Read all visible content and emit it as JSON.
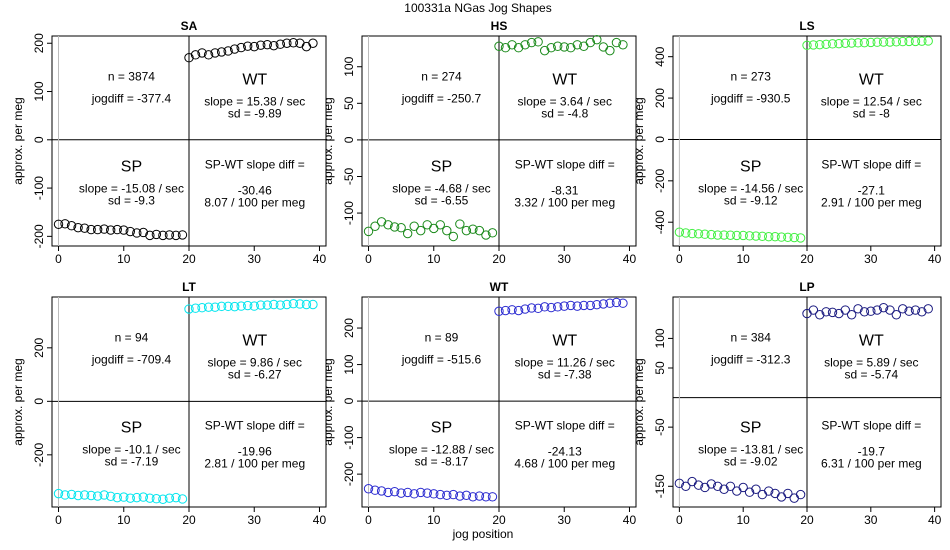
{
  "figure_title": "100331a    NGas Jog Shapes",
  "xlabel": "jog position",
  "chart_data": [
    {
      "type": "scatter",
      "title": "SA",
      "color": "#000000",
      "ylabel": "approx. per meg",
      "xlim": [
        -1,
        41
      ],
      "ylim": [
        -220,
        215
      ],
      "xticks": [
        0,
        10,
        20,
        30,
        40
      ],
      "yticks": [
        -200,
        -100,
        0,
        100,
        200
      ],
      "n_text": "n = 3874",
      "jogdiff_text": "jogdiff = -377.4",
      "wt_label": "WT",
      "wt_slope_text": "slope = 15.38 / sec",
      "wt_sd_text": "sd = -9.89",
      "sp_label": "SP",
      "sp_slope_text": "slope = -15.08 / sec",
      "sp_sd_text": "sd = -9.3",
      "diff_label": "SP-WT slope diff =",
      "diff_value": "-30.46",
      "diff_per_meg": "8.07 / 100 per meg",
      "series": [
        {
          "x": [
            0,
            1,
            2,
            3,
            4,
            5,
            6,
            7,
            8,
            9,
            10,
            11,
            12,
            13,
            14,
            15,
            16,
            17,
            18,
            19
          ],
          "y": [
            -175,
            -174,
            -178,
            -182,
            -183,
            -186,
            -186,
            -185,
            -187,
            -186,
            -187,
            -190,
            -193,
            -192,
            -198,
            -196,
            -198,
            -197,
            -198,
            -197
          ]
        },
        {
          "x": [
            20,
            21,
            22,
            23,
            24,
            25,
            26,
            27,
            28,
            29,
            30,
            31,
            32,
            33,
            34,
            35,
            36,
            37,
            38,
            39
          ],
          "y": [
            170,
            176,
            180,
            176,
            180,
            182,
            184,
            188,
            191,
            194,
            193,
            196,
            197,
            195,
            198,
            200,
            201,
            200,
            193,
            200
          ]
        }
      ]
    },
    {
      "type": "scatter",
      "title": "HS",
      "color": "#1b8a1b",
      "ylabel": "approx. per meg",
      "xlim": [
        -1,
        41
      ],
      "ylim": [
        -145,
        142
      ],
      "xticks": [
        0,
        10,
        20,
        30,
        40
      ],
      "yticks": [
        -100,
        -50,
        0,
        50,
        100
      ],
      "n_text": "n = 274",
      "jogdiff_text": "jogdiff = -250.7",
      "wt_label": "WT",
      "wt_slope_text": "slope = 3.64 / sec",
      "wt_sd_text": "sd = -4.8",
      "sp_label": "SP",
      "sp_slope_text": "slope = -4.68 / sec",
      "sp_sd_text": "sd = -6.55",
      "diff_label": "SP-WT slope diff =",
      "diff_value": "-8.31",
      "diff_per_meg": "3.32 / 100 per meg",
      "series": [
        {
          "x": [
            0,
            1,
            2,
            3,
            4,
            5,
            6,
            7,
            8,
            9,
            10,
            11,
            12,
            13,
            14,
            15,
            16,
            17,
            18,
            19
          ],
          "y": [
            -125,
            -118,
            -112,
            -116,
            -119,
            -120,
            -128,
            -118,
            -124,
            -116,
            -121,
            -116,
            -124,
            -132,
            -115,
            -124,
            -122,
            -124,
            -130,
            -127
          ]
        },
        {
          "x": [
            20,
            21,
            22,
            23,
            24,
            25,
            26,
            27,
            28,
            29,
            30,
            31,
            32,
            33,
            34,
            35,
            36,
            37,
            38,
            39
          ],
          "y": [
            128,
            126,
            130,
            126,
            130,
            133,
            134,
            122,
            126,
            128,
            127,
            126,
            130,
            128,
            133,
            137,
            127,
            122,
            133,
            130
          ]
        }
      ]
    },
    {
      "type": "scatter",
      "title": "LS",
      "color": "#40f040",
      "ylabel": "approx. per meg",
      "xlim": [
        -1,
        41
      ],
      "ylim": [
        -515,
        500
      ],
      "xticks": [
        0,
        10,
        20,
        30,
        40
      ],
      "yticks": [
        -400,
        -200,
        0,
        200,
        400
      ],
      "n_text": "n = 273",
      "jogdiff_text": "jogdiff = -930.5",
      "wt_label": "WT",
      "wt_slope_text": "slope = 12.54 / sec",
      "wt_sd_text": "sd = -8",
      "sp_label": "SP",
      "sp_slope_text": "slope = -14.56 / sec",
      "sp_sd_text": "sd = -9.12",
      "diff_label": "SP-WT slope diff =",
      "diff_value": "-27.1",
      "diff_per_meg": "2.91 / 100 per meg",
      "series": [
        {
          "x": [
            0,
            1,
            2,
            3,
            4,
            5,
            6,
            7,
            8,
            9,
            10,
            11,
            12,
            13,
            14,
            15,
            16,
            17,
            18,
            19
          ],
          "y": [
            -448,
            -452,
            -455,
            -456,
            -458,
            -460,
            -462,
            -462,
            -463,
            -464,
            -464,
            -466,
            -467,
            -468,
            -470,
            -470,
            -472,
            -473,
            -474,
            -476
          ]
        },
        {
          "x": [
            20,
            21,
            22,
            23,
            24,
            25,
            26,
            27,
            28,
            29,
            30,
            31,
            32,
            33,
            34,
            35,
            36,
            37,
            38,
            39
          ],
          "y": [
            455,
            457,
            458,
            460,
            462,
            463,
            465,
            466,
            467,
            468,
            469,
            470,
            471,
            471,
            472,
            473,
            474,
            474,
            475,
            476
          ]
        }
      ]
    },
    {
      "type": "scatter",
      "title": "LT",
      "color": "#00e5ee",
      "ylabel": "approx. per meg",
      "xlim": [
        -1,
        41
      ],
      "ylim": [
        -395,
        390
      ],
      "xticks": [
        0,
        10,
        20,
        30,
        40
      ],
      "yticks": [
        -200,
        0,
        200
      ],
      "n_text": "n = 94",
      "jogdiff_text": "jogdiff = -709.4",
      "wt_label": "WT",
      "wt_slope_text": "slope = 9.86 / sec",
      "wt_sd_text": "sd = -6.27",
      "sp_label": "SP",
      "sp_slope_text": "slope = -10.1 / sec",
      "sp_sd_text": "sd = -7.19",
      "diff_label": "SP-WT slope diff =",
      "diff_value": "-19.96",
      "diff_per_meg": "2.81 / 100 per meg",
      "series": [
        {
          "x": [
            0,
            1,
            2,
            3,
            4,
            5,
            6,
            7,
            8,
            9,
            10,
            11,
            12,
            13,
            14,
            15,
            16,
            17,
            18,
            19
          ],
          "y": [
            -345,
            -350,
            -348,
            -352,
            -350,
            -352,
            -354,
            -350,
            -355,
            -360,
            -358,
            -362,
            -360,
            -358,
            -362,
            -364,
            -366,
            -362,
            -360,
            -365
          ]
        },
        {
          "x": [
            20,
            21,
            22,
            23,
            24,
            25,
            26,
            27,
            28,
            29,
            30,
            31,
            32,
            33,
            34,
            35,
            36,
            37,
            38,
            39
          ],
          "y": [
            345,
            348,
            350,
            352,
            352,
            355,
            355,
            354,
            356,
            358,
            356,
            360,
            360,
            362,
            360,
            362,
            365,
            364,
            362,
            362
          ]
        }
      ]
    },
    {
      "type": "scatter",
      "title": "WT",
      "color": "#2a2ad0",
      "ylabel": "approx. per meg",
      "xlim": [
        -1,
        41
      ],
      "ylim": [
        -290,
        285
      ],
      "xticks": [
        0,
        10,
        20,
        30,
        40
      ],
      "yticks": [
        -200,
        -100,
        0,
        100,
        200
      ],
      "n_text": "n = 89",
      "jogdiff_text": "jogdiff = -515.6",
      "wt_label": "WT",
      "wt_slope_text": "slope = 11.26 / sec",
      "wt_sd_text": "sd = -7.38",
      "sp_label": "SP",
      "sp_slope_text": "slope = -12.88 / sec",
      "sp_sd_text": "sd = -8.17",
      "diff_label": "SP-WT slope diff =",
      "diff_value": "-24.13",
      "diff_per_meg": "4.68 / 100 per meg",
      "series": [
        {
          "x": [
            0,
            1,
            2,
            3,
            4,
            5,
            6,
            7,
            8,
            9,
            10,
            11,
            12,
            13,
            14,
            15,
            16,
            17,
            18,
            19
          ],
          "y": [
            -240,
            -244,
            -246,
            -250,
            -248,
            -252,
            -250,
            -254,
            -250,
            -252,
            -254,
            -256,
            -258,
            -256,
            -260,
            -258,
            -262,
            -260,
            -262,
            -262
          ]
        },
        {
          "x": [
            20,
            21,
            22,
            23,
            24,
            25,
            26,
            27,
            28,
            29,
            30,
            31,
            32,
            33,
            34,
            35,
            36,
            37,
            38,
            39
          ],
          "y": [
            246,
            248,
            250,
            248,
            252,
            255,
            254,
            258,
            256,
            258,
            260,
            262,
            260,
            262,
            262,
            264,
            266,
            268,
            270,
            268
          ]
        }
      ]
    },
    {
      "type": "scatter",
      "title": "LP",
      "color": "#1a1a80",
      "ylabel": "approx. per meg",
      "xlim": [
        -1,
        41
      ],
      "ylim": [
        -185,
        170
      ],
      "xticks": [
        0,
        10,
        20,
        30,
        40
      ],
      "yticks": [
        -150,
        -50,
        50,
        100
      ],
      "n_text": "n = 384",
      "jogdiff_text": "jogdiff = -312.3",
      "wt_label": "WT",
      "wt_slope_text": "slope = 5.89 / sec",
      "wt_sd_text": "sd = -5.74",
      "sp_label": "SP",
      "sp_slope_text": "slope = -13.81 / sec",
      "sp_sd_text": "sd = -9.02",
      "diff_label": "SP-WT slope diff =",
      "diff_value": "-19.7",
      "diff_per_meg": "6.31 / 100 per meg",
      "series": [
        {
          "x": [
            0,
            1,
            2,
            3,
            4,
            5,
            6,
            7,
            8,
            9,
            10,
            11,
            12,
            13,
            14,
            15,
            16,
            17,
            18,
            19
          ],
          "y": [
            -145,
            -150,
            -142,
            -148,
            -152,
            -146,
            -150,
            -155,
            -150,
            -158,
            -152,
            -160,
            -155,
            -164,
            -158,
            -162,
            -168,
            -162,
            -170,
            -164
          ]
        },
        {
          "x": [
            20,
            21,
            22,
            23,
            24,
            25,
            26,
            27,
            28,
            29,
            30,
            31,
            32,
            33,
            34,
            35,
            36,
            37,
            38,
            39
          ],
          "y": [
            142,
            148,
            140,
            145,
            144,
            142,
            148,
            140,
            150,
            145,
            146,
            148,
            152,
            148,
            140,
            150,
            146,
            148,
            145,
            150
          ]
        }
      ]
    }
  ]
}
